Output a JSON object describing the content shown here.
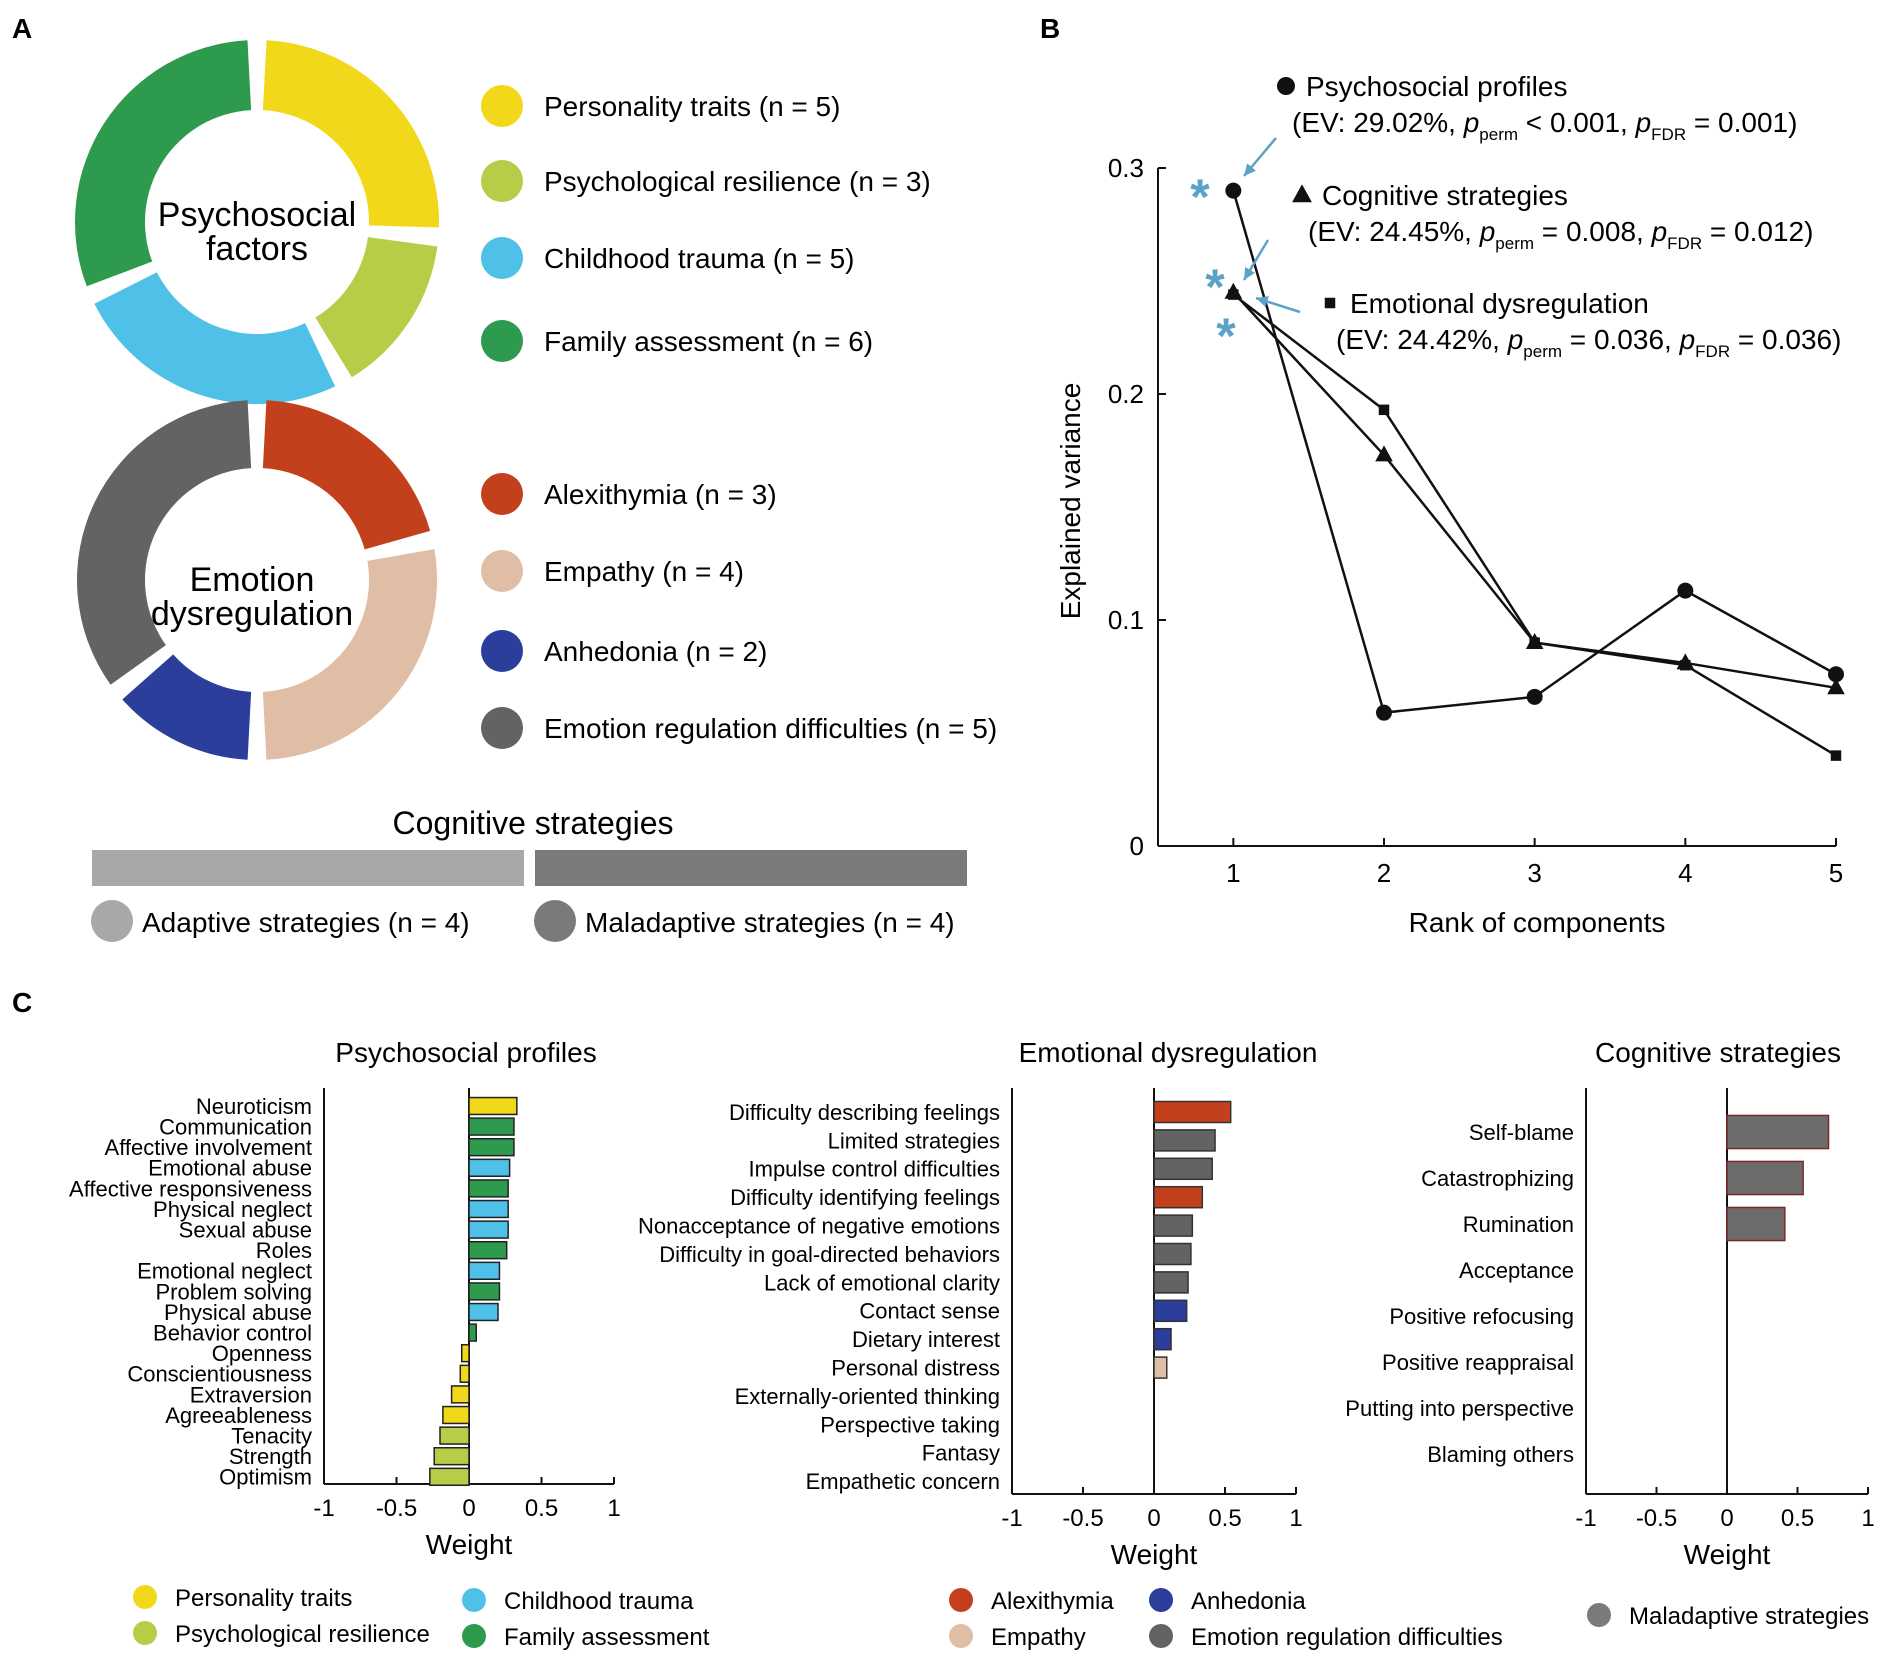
{
  "panels": {
    "A": "A",
    "B": "B",
    "C": "C"
  },
  "colors": {
    "personality": "#f2d81a",
    "resilience": "#b6cd48",
    "trauma": "#4fc0e8",
    "family": "#2e9a4e",
    "alexithymia": "#c3401c",
    "empathy": "#e0bea5",
    "anhedonia": "#2b3e9c",
    "erd": "#636363",
    "adaptive": "#a8a8a8",
    "maladaptive": "#7a7a7a",
    "barGray": "#6c6c6c",
    "arrow": "#5ba2c6"
  },
  "panelA": {
    "donut1": {
      "label_line1": "Psychosocial",
      "label_line2": "factors",
      "legend": [
        {
          "label": "Personality traits (n = 5)",
          "color_key": "personality",
          "n": 5
        },
        {
          "label": "Psychological resilience (n = 3)",
          "color_key": "resilience",
          "n": 3
        },
        {
          "label": "Childhood trauma (n = 5)",
          "color_key": "trauma",
          "n": 5
        },
        {
          "label": "Family assessment (n = 6)",
          "color_key": "family",
          "n": 6
        }
      ]
    },
    "donut2": {
      "label_line1": "Emotion",
      "label_line2": "dysregulation",
      "legend": [
        {
          "label": "Alexithymia (n = 3)",
          "color_key": "alexithymia",
          "n": 3
        },
        {
          "label": "Empathy (n = 4)",
          "color_key": "empathy",
          "n": 4
        },
        {
          "label": "Anhedonia (n = 2)",
          "color_key": "anhedonia",
          "n": 2
        },
        {
          "label": "Emotion regulation difficulties (n = 5)",
          "color_key": "erd",
          "n": 5
        }
      ]
    },
    "cognitive": {
      "title": "Cognitive strategies",
      "legend": [
        {
          "label": "Adaptive strategies (n = 4)",
          "color_key": "adaptive",
          "n": 4
        },
        {
          "label": "Maladaptive strategies (n = 4)",
          "color_key": "maladaptive",
          "n": 4
        }
      ]
    }
  },
  "chart_data": [
    {
      "id": "B",
      "type": "line",
      "xlabel": "Rank of components",
      "ylabel": "Explained variance",
      "x": [
        1,
        2,
        3,
        4,
        5
      ],
      "xlim": [
        0.5,
        5
      ],
      "ylim": [
        0,
        0.3
      ],
      "yticks": [
        0,
        0.1,
        0.2,
        0.3
      ],
      "ytick_labels": [
        "0",
        "0.1",
        "0.2",
        "0.3"
      ],
      "series": [
        {
          "name": "Psychosocial profiles",
          "marker": "circle",
          "values": [
            0.29,
            0.059,
            0.066,
            0.113,
            0.076
          ],
          "stats_prefix": "(EV: 29.02%, ",
          "stats_p1": " < 0.001, ",
          "stats_p2": " = 0.001)"
        },
        {
          "name": "Cognitive strategies",
          "marker": "triangle",
          "values": [
            0.245,
            0.173,
            0.09,
            0.081,
            0.07
          ],
          "stats_prefix": "(EV: 24.45%, ",
          "stats_p1": " = 0.008, ",
          "stats_p2": " = 0.012)"
        },
        {
          "name": "Emotional dysregulation",
          "marker": "square",
          "values": [
            0.244,
            0.193,
            0.09,
            0.08,
            0.04
          ],
          "stats_prefix": "(EV: 24.42%, ",
          "stats_p1": " = 0.036, ",
          "stats_p2": " = 0.036)"
        }
      ],
      "p_symbol": "p",
      "perm_sub": "perm",
      "fdr_sub": "FDR",
      "significance_marker": "*"
    },
    {
      "id": "C1",
      "type": "bar",
      "orientation": "horizontal",
      "title": "Psychosocial profiles",
      "xlabel": "Weight",
      "xlim": [
        -1,
        1
      ],
      "xticks": [
        -1,
        -0.5,
        0,
        0.5,
        1
      ],
      "xtick_labels": [
        "-1",
        "-0.5",
        "0",
        "0.5",
        "1"
      ],
      "categories": [
        "Neuroticism",
        "Communication",
        "Affective involvement",
        "Emotional abuse",
        "Affective responsiveness",
        "Physical neglect",
        "Sexual abuse",
        "Roles",
        "Emotional neglect",
        "Problem solving",
        "Physical abuse",
        "Behavior control",
        "Openness",
        "Conscientiousness",
        "Extraversion",
        "Agreeableness",
        "Tenacity",
        "Strength",
        "Optimism"
      ],
      "values": [
        0.33,
        0.31,
        0.31,
        0.28,
        0.27,
        0.27,
        0.27,
        0.26,
        0.21,
        0.21,
        0.2,
        0.05,
        -0.05,
        -0.06,
        -0.12,
        -0.18,
        -0.2,
        -0.24,
        -0.27
      ],
      "color_keys": [
        "personality",
        "family",
        "family",
        "trauma",
        "family",
        "trauma",
        "trauma",
        "family",
        "trauma",
        "family",
        "trauma",
        "family",
        "personality",
        "personality",
        "personality",
        "personality",
        "resilience",
        "resilience",
        "resilience"
      ],
      "legend": [
        {
          "label": "Personality traits",
          "color_key": "personality"
        },
        {
          "label": "Psychological resilience",
          "color_key": "resilience"
        },
        {
          "label": "Childhood trauma",
          "color_key": "trauma"
        },
        {
          "label": "Family assessment",
          "color_key": "family"
        }
      ]
    },
    {
      "id": "C2",
      "type": "bar",
      "orientation": "horizontal",
      "title": "Emotional dysregulation",
      "xlabel": "Weight",
      "xlim": [
        -1,
        1
      ],
      "xticks": [
        -1,
        -0.5,
        0,
        0.5,
        1
      ],
      "xtick_labels": [
        "-1",
        "-0.5",
        "0",
        "0.5",
        "1"
      ],
      "categories": [
        "Difficulty describing feelings",
        "Limited strategies",
        "Impulse control difficulties",
        "Difficulty identifying feelings",
        "Nonacceptance of negative emotions",
        "Difficulty in goal-directed behaviors",
        "Lack of emotional clarity",
        "Contact sense",
        "Dietary interest",
        "Personal distress",
        "Externally-oriented thinking",
        "Perspective taking",
        "Fantasy",
        "Empathetic concern"
      ],
      "values": [
        0.54,
        0.43,
        0.41,
        0.34,
        0.27,
        0.26,
        0.24,
        0.23,
        0.12,
        0.09,
        0.0,
        0.0,
        0.0,
        0.0
      ],
      "color_keys": [
        "alexithymia",
        "erd",
        "erd",
        "alexithymia",
        "erd",
        "erd",
        "erd",
        "anhedonia",
        "anhedonia",
        "empathy",
        "alexithymia",
        "empathy",
        "empathy",
        "empathy"
      ],
      "legend": [
        {
          "label": "Alexithymia",
          "color_key": "alexithymia"
        },
        {
          "label": "Anhedonia",
          "color_key": "anhedonia"
        },
        {
          "label": "Empathy",
          "color_key": "empathy"
        },
        {
          "label": "Emotion regulation difficulties",
          "color_key": "erd"
        }
      ]
    },
    {
      "id": "C3",
      "type": "bar",
      "orientation": "horizontal",
      "title": "Cognitive strategies",
      "xlabel": "Weight",
      "xlim": [
        -1,
        1
      ],
      "xticks": [
        -1,
        -0.5,
        0,
        0.5,
        1
      ],
      "xtick_labels": [
        "-1",
        "-0.5",
        "0",
        "0.5",
        "1"
      ],
      "categories": [
        "Self-blame",
        "Catastrophizing",
        "Rumination",
        "Acceptance",
        "Positive refocusing",
        "Positive reappraisal",
        "Putting into perspective",
        "Blaming others"
      ],
      "values": [
        0.72,
        0.54,
        0.41,
        0.0,
        0.0,
        0.0,
        0.0,
        0.0
      ],
      "color_keys": [
        "barGray",
        "barGray",
        "barGray",
        "barGray",
        "barGray",
        "barGray",
        "barGray",
        "barGray"
      ],
      "legend": [
        {
          "label": "Maladaptive strategies",
          "color_key": "maladaptive"
        }
      ]
    }
  ]
}
